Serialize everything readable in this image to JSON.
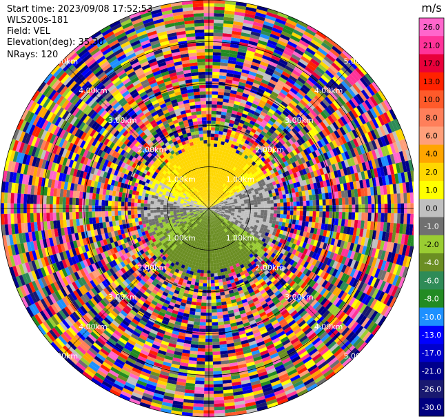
{
  "info": {
    "start_time": "Start time: 2023/09/08 17:52:53",
    "instrument": "WLS200s-181",
    "field": "Field: VEL",
    "elevation": "Elevation(deg): 35.30",
    "nrays": "NRays: 120"
  },
  "chart_data": {
    "type": "heatmap",
    "projection": "polar-ppi",
    "field": "VEL",
    "units": "m/s",
    "n_rays": 120,
    "elevation_deg": 35.3,
    "range_rings_km": [
      1.0,
      2.0,
      3.0,
      4.0,
      5.0
    ],
    "range_labels": [
      "1.00km",
      "2.00km",
      "3.00km",
      "4.00km",
      "5.00km"
    ],
    "max_range_km": 5.0,
    "crosshair": true,
    "colorbar": {
      "title": "m/s",
      "ticks": [
        "26.0",
        "21.0",
        "17.0",
        "13.0",
        "10.0",
        "8.0",
        "6.0",
        "4.0",
        "2.0",
        "1.0",
        "0.0",
        "-1.0",
        "-2.0",
        "-4.0",
        "-6.0",
        "-8.0",
        "-10.0",
        "-13.0",
        "-17.0",
        "-21.0",
        "-26.0",
        "-30.0"
      ],
      "colors": [
        "#ff66cc",
        "#ff3399",
        "#e8003a",
        "#ff2200",
        "#ff5a2a",
        "#ff7f5a",
        "#ff9f7a",
        "#ffa500",
        "#ffd700",
        "#ffff00",
        "#c0c0c0",
        "#707070",
        "#9acd32",
        "#6b8e23",
        "#2e8b57",
        "#228b22",
        "#1e90ff",
        "#0000ff",
        "#0000cd",
        "#00008b",
        "#191970",
        "#000080"
      ]
    },
    "pattern_notes": "near field (<~1.7 km) shows coherent wind: positive velocities (yellow) to the north, zero/grey band to the east, negative (green) to the south; beyond ~2 km the field is noise (random colors)"
  }
}
